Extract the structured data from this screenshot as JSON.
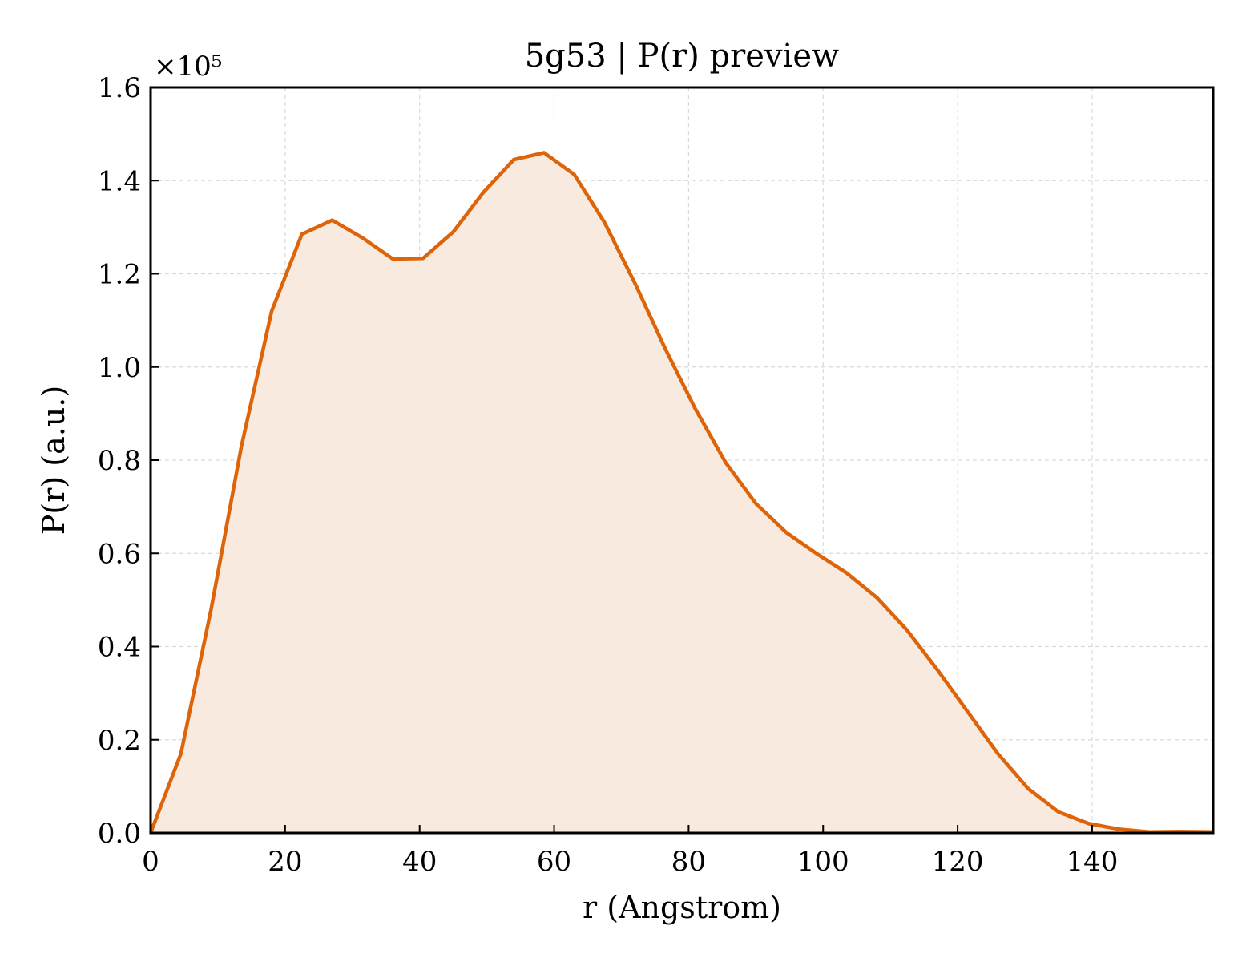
{
  "chart_data": {
    "type": "area",
    "title": "5g53 | P(r) preview",
    "xlabel": "r (Angstrom)",
    "ylabel": "P(r) (a.u.)",
    "y_scale_label": "×10⁵",
    "xlim": [
      0,
      158
    ],
    "ylim": [
      0,
      1.6
    ],
    "x_ticks": [
      0,
      20,
      40,
      60,
      80,
      100,
      120,
      140
    ],
    "x_tick_labels": [
      "0",
      "20",
      "40",
      "60",
      "80",
      "100",
      "120",
      "140"
    ],
    "y_ticks": [
      0,
      0.2,
      0.4,
      0.6,
      0.8,
      1.0,
      1.2,
      1.4,
      1.6
    ],
    "y_tick_labels": [
      "0.0",
      "0.2",
      "0.4",
      "0.6",
      "0.8",
      "1.0",
      "1.2",
      "1.4",
      "1.6"
    ],
    "grid": true,
    "line_color": "#dd6409",
    "fill_color": "#f9eadf",
    "series": [
      {
        "x": [
          0,
          4.5,
          9,
          13.5,
          18,
          22.5,
          27,
          31.5,
          36,
          40.5,
          45,
          49.5,
          54,
          58.5,
          63,
          67.5,
          72,
          76.5,
          81,
          85.5,
          90,
          94.5,
          99,
          103.5,
          108,
          112.5,
          117,
          121.5,
          126,
          130.5,
          135,
          139.5,
          144,
          148.5,
          153,
          158
        ],
        "y": [
          0.0,
          0.17,
          0.48,
          0.83,
          1.12,
          1.285,
          1.315,
          1.277,
          1.232,
          1.233,
          1.29,
          1.375,
          1.445,
          1.46,
          1.413,
          1.31,
          1.18,
          1.04,
          0.91,
          0.795,
          0.707,
          0.645,
          0.6,
          0.558,
          0.505,
          0.435,
          0.35,
          0.26,
          0.17,
          0.095,
          0.045,
          0.02,
          0.008,
          0.002,
          0.003,
          0.002
        ]
      }
    ]
  }
}
